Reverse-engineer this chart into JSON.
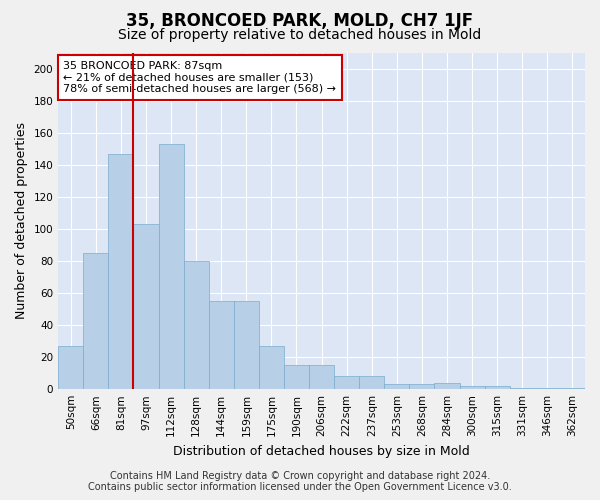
{
  "title": "35, BRONCOED PARK, MOLD, CH7 1JF",
  "subtitle": "Size of property relative to detached houses in Mold",
  "xlabel": "Distribution of detached houses by size in Mold",
  "ylabel": "Number of detached properties",
  "footnote1": "Contains HM Land Registry data © Crown copyright and database right 2024.",
  "footnote2": "Contains public sector information licensed under the Open Government Licence v3.0.",
  "bar_labels": [
    "50sqm",
    "66sqm",
    "81sqm",
    "97sqm",
    "112sqm",
    "128sqm",
    "144sqm",
    "159sqm",
    "175sqm",
    "190sqm",
    "206sqm",
    "222sqm",
    "237sqm",
    "253sqm",
    "268sqm",
    "284sqm",
    "300sqm",
    "315sqm",
    "331sqm",
    "346sqm",
    "362sqm"
  ],
  "bar_values": [
    27,
    85,
    147,
    103,
    153,
    80,
    55,
    55,
    27,
    15,
    15,
    8,
    8,
    3,
    3,
    4,
    2,
    2,
    1,
    1,
    1
  ],
  "bar_color": "#b8cfe8",
  "bar_edgecolor": "#7aabcc",
  "bg_color": "#dce6f5",
  "grid_color": "#ffffff",
  "red_line_x": 2.5,
  "ylim": [
    0,
    210
  ],
  "yticks": [
    0,
    20,
    40,
    60,
    80,
    100,
    120,
    140,
    160,
    180,
    200
  ],
  "annotation_title": "35 BRONCOED PARK: 87sqm",
  "annotation_line1": "← 21% of detached houses are smaller (153)",
  "annotation_line2": "78% of semi-detached houses are larger (568) →",
  "annotation_box_color": "#ffffff",
  "annotation_box_edgecolor": "#cc0000",
  "title_fontsize": 12,
  "subtitle_fontsize": 10,
  "axis_label_fontsize": 9,
  "tick_fontsize": 7.5,
  "annotation_fontsize": 8,
  "footnote_fontsize": 7
}
